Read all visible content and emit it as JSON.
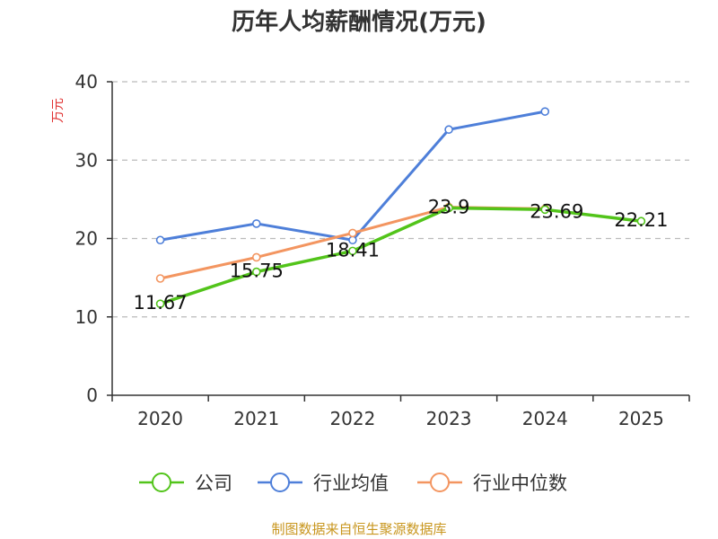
{
  "chart_data": {
    "type": "line",
    "title": "历年人均薪酬情况(万元)",
    "ylabel": "万元",
    "xlabel": "",
    "categories": [
      "2020",
      "2021",
      "2022",
      "2023",
      "2024",
      "2025"
    ],
    "ylim": [
      0,
      40
    ],
    "yticks": [
      0,
      10,
      20,
      30,
      40
    ],
    "grid": true,
    "legend_position": "bottom",
    "series": [
      {
        "name": "公司",
        "color": "#52c41a",
        "values": [
          11.67,
          15.75,
          18.41,
          23.9,
          23.69,
          22.21
        ],
        "labels": [
          "11.67",
          "15.75",
          "18.41",
          "23.9",
          "23.69",
          "22.21"
        ]
      },
      {
        "name": "行业均值",
        "color": "#4e7fd9",
        "values": [
          19.8,
          21.9,
          19.8,
          33.9,
          36.2,
          null
        ]
      },
      {
        "name": "行业中位数",
        "color": "#f39560",
        "values": [
          14.9,
          17.6,
          20.7,
          24.0,
          23.8,
          null
        ]
      }
    ]
  },
  "source": "制图数据来自恒生聚源数据库",
  "colors": {
    "axis": "#333333",
    "grid": "#bbbbbb",
    "ylabel": "#e03030",
    "source": "#c8961e"
  }
}
